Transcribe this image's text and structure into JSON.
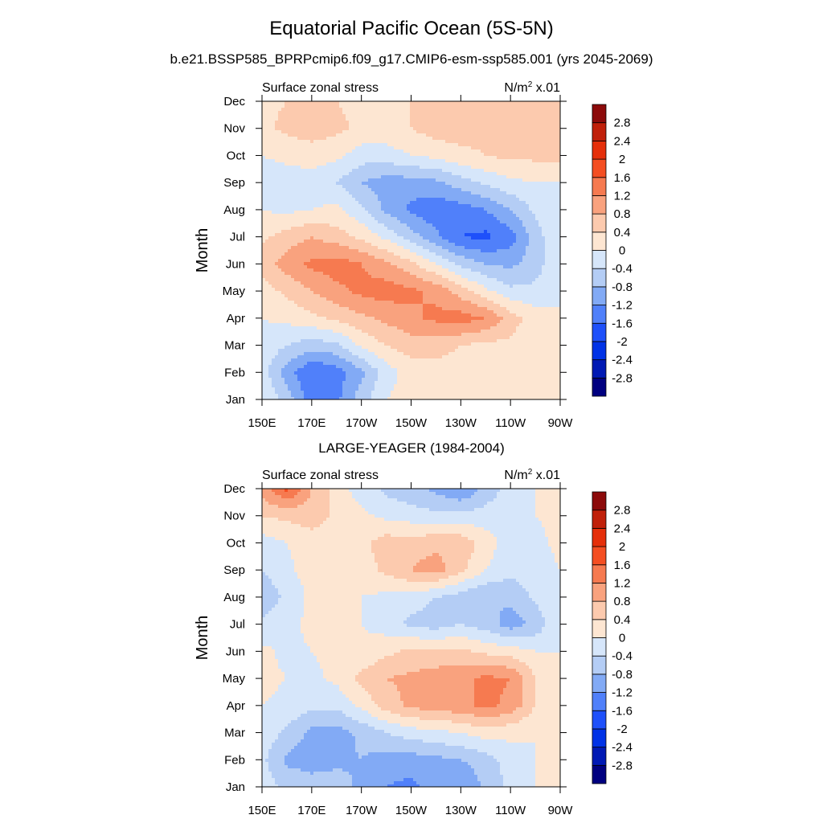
{
  "title": "Equatorial Pacific Ocean (5S-5N)",
  "subtitle": "b.e21.BSSP585_BPRPcmip6.f09_g17.CMIP6-esm-ssp585.001 (yrs 2045-2069)",
  "panel2_title": "LARGE-YEAGER (1984-2004)",
  "chart_data": [
    {
      "type": "heatmap",
      "variable": "Surface zonal stress",
      "units_base": "N/m",
      "units_exp": "2",
      "units_scale": "x.01",
      "ylabel": "Month",
      "xlim": [
        150,
        270
      ],
      "xticks": [
        "150E",
        "170E",
        "170W",
        "150W",
        "130W",
        "110W",
        "90W"
      ],
      "yticks": [
        "Jan",
        "Feb",
        "Mar",
        "Apr",
        "May",
        "Jun",
        "Jul",
        "Aug",
        "Sep",
        "Oct",
        "Nov",
        "Dec"
      ],
      "x": [
        150,
        160,
        170,
        180,
        190,
        200,
        210,
        220,
        230,
        240,
        250,
        260,
        270
      ],
      "z": [
        [
          0.0,
          -0.6,
          -1.4,
          -1.3,
          -0.6,
          0.0,
          0.2,
          0.2,
          0.2,
          0.2,
          0.2,
          0.1,
          0.0
        ],
        [
          -0.2,
          -1.0,
          -1.6,
          -1.4,
          -0.9,
          -0.2,
          0.2,
          0.2,
          0.2,
          0.2,
          0.2,
          0.1,
          0.0
        ],
        [
          -0.1,
          -0.4,
          -0.6,
          -0.5,
          0.1,
          0.4,
          0.6,
          0.6,
          0.4,
          0.3,
          0.3,
          0.1,
          0.0
        ],
        [
          0.0,
          0.1,
          0.3,
          0.5,
          0.7,
          0.9,
          1.1,
          1.3,
          1.4,
          1.2,
          0.6,
          0.2,
          0.0
        ],
        [
          0.2,
          0.5,
          0.8,
          1.1,
          1.3,
          1.4,
          1.3,
          1.1,
          0.6,
          0.1,
          -0.3,
          -0.3,
          0.0
        ],
        [
          0.6,
          1.0,
          1.3,
          1.4,
          1.2,
          0.9,
          0.5,
          0.0,
          -0.5,
          -0.8,
          -0.9,
          -0.6,
          0.0
        ],
        [
          0.3,
          0.6,
          0.8,
          0.6,
          0.3,
          -0.1,
          -0.6,
          -1.1,
          -1.6,
          -1.7,
          -1.4,
          -0.6,
          0.0
        ],
        [
          0.0,
          -0.1,
          0.0,
          0.1,
          -0.3,
          -0.9,
          -1.3,
          -1.5,
          -1.4,
          -1.2,
          -0.8,
          -0.3,
          0.0
        ],
        [
          -0.2,
          -0.2,
          -0.2,
          -0.4,
          -0.8,
          -1.0,
          -1.0,
          -0.9,
          -0.6,
          -0.3,
          -0.1,
          0.0,
          0.0
        ],
        [
          0.0,
          0.1,
          0.2,
          0.1,
          -0.2,
          -0.2,
          0.0,
          0.1,
          0.3,
          0.4,
          0.5,
          0.5,
          0.5
        ],
        [
          0.3,
          0.5,
          0.6,
          0.5,
          0.3,
          0.3,
          0.4,
          0.6,
          0.6,
          0.5,
          0.5,
          0.5,
          0.5
        ],
        [
          0.3,
          0.4,
          0.4,
          0.4,
          0.3,
          0.3,
          0.4,
          0.5,
          0.6,
          0.6,
          0.5,
          0.5,
          0.5
        ]
      ]
    },
    {
      "type": "heatmap",
      "variable": "Surface zonal stress",
      "units_base": "N/m",
      "units_exp": "2",
      "units_scale": "x.01",
      "ylabel": "Month",
      "xlim": [
        150,
        270
      ],
      "xticks": [
        "150E",
        "170E",
        "170W",
        "150W",
        "130W",
        "110W",
        "90W"
      ],
      "yticks": [
        "Jan",
        "Feb",
        "Mar",
        "Apr",
        "May",
        "Jun",
        "Jul",
        "Aug",
        "Sep",
        "Oct",
        "Nov",
        "Dec"
      ],
      "x": [
        150,
        160,
        170,
        180,
        190,
        200,
        210,
        220,
        230,
        240,
        250,
        260,
        270
      ],
      "z": [
        [
          -0.2,
          -0.5,
          -0.6,
          -0.6,
          -0.9,
          -1.2,
          -1.3,
          -1.0,
          -1.2,
          -0.7,
          -0.3,
          0.0,
          0.1
        ],
        [
          -0.3,
          -0.9,
          -1.0,
          -0.9,
          -0.8,
          -1.0,
          -1.0,
          -0.9,
          -0.8,
          -0.6,
          -0.2,
          0.0,
          0.1
        ],
        [
          -0.1,
          -0.5,
          -0.9,
          -1.0,
          -0.7,
          -0.4,
          -0.2,
          -0.1,
          0.0,
          0.2,
          0.1,
          0.0,
          0.1
        ],
        [
          0.0,
          -0.1,
          -0.3,
          -0.3,
          0.1,
          0.6,
          0.9,
          1.0,
          1.1,
          1.3,
          1.1,
          0.4,
          0.1
        ],
        [
          0.1,
          0.0,
          -0.1,
          0.1,
          0.5,
          0.8,
          0.9,
          1.0,
          1.1,
          1.3,
          1.2,
          0.4,
          0.1
        ],
        [
          0.1,
          -0.1,
          0.0,
          0.1,
          0.1,
          0.3,
          0.5,
          0.5,
          0.5,
          0.3,
          0.2,
          0.0,
          0.0
        ],
        [
          -0.3,
          -0.1,
          0.1,
          0.1,
          0.0,
          -0.2,
          -0.5,
          -0.6,
          -0.4,
          -0.6,
          -1.0,
          -0.7,
          0.0
        ],
        [
          -0.7,
          -0.3,
          0.1,
          0.2,
          0.0,
          -0.1,
          -0.2,
          -0.4,
          -0.6,
          -0.8,
          -0.7,
          -0.3,
          0.0
        ],
        [
          -0.4,
          -0.1,
          0.2,
          0.2,
          0.2,
          0.5,
          0.8,
          1.0,
          0.5,
          0.0,
          -0.3,
          -0.2,
          0.0
        ],
        [
          -0.2,
          0.0,
          0.2,
          0.2,
          0.3,
          0.6,
          0.6,
          0.7,
          0.7,
          0.2,
          -0.2,
          -0.1,
          0.1
        ],
        [
          0.4,
          0.5,
          0.6,
          0.3,
          0.1,
          -0.1,
          -0.2,
          -0.3,
          -0.3,
          -0.2,
          -0.1,
          0.0,
          0.1
        ],
        [
          1.0,
          1.7,
          0.8,
          0.2,
          -0.2,
          -0.5,
          -0.7,
          -0.9,
          -1.2,
          -0.7,
          -0.2,
          0.0,
          0.1
        ]
      ]
    }
  ],
  "colorbar": {
    "labels": [
      "2.8",
      "2.4",
      "2",
      "1.6",
      "1.2",
      "0.8",
      "0.4",
      "0",
      "-0.4",
      "-0.8",
      "-1.2",
      "-1.6",
      "-2",
      "-2.4",
      "-2.8"
    ],
    "levels": [
      -2.8,
      -2.4,
      -2.0,
      -1.6,
      -1.2,
      -0.8,
      -0.4,
      0,
      0.4,
      0.8,
      1.2,
      1.6,
      2.0,
      2.4,
      2.8
    ],
    "colors": [
      "#000080",
      "#0019b4",
      "#0032e6",
      "#1e50fa",
      "#5080fa",
      "#82aaf5",
      "#b4cdf5",
      "#d6e6fa",
      "#fde6d2",
      "#fccaae",
      "#f9a27e",
      "#f67a50",
      "#f44e22",
      "#e52f0a",
      "#c0200a",
      "#8c0a0a"
    ]
  }
}
